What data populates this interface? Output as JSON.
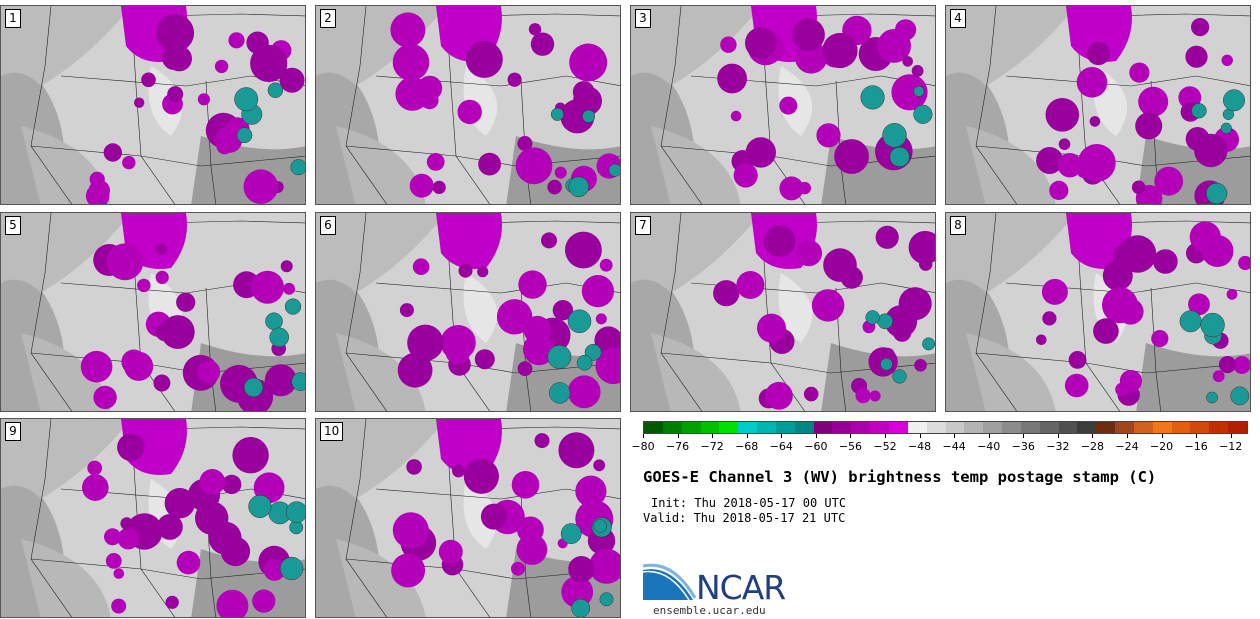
{
  "panels": [
    {
      "label": "1"
    },
    {
      "label": "2"
    },
    {
      "label": "3"
    },
    {
      "label": "4"
    },
    {
      "label": "5"
    },
    {
      "label": "6"
    },
    {
      "label": "7"
    },
    {
      "label": "8"
    },
    {
      "label": "9"
    },
    {
      "label": "10"
    }
  ],
  "colorbar": {
    "ticks": [
      "−80",
      "−76",
      "−72",
      "−68",
      "−64",
      "−60",
      "−56",
      "−52",
      "−48",
      "−44",
      "−40",
      "−36",
      "−32",
      "−28",
      "−24",
      "−20",
      "−16",
      "−12"
    ],
    "min": -80,
    "max": -10,
    "colors": [
      "#005a00",
      "#008000",
      "#00a000",
      "#00c000",
      "#00e000",
      "#00cccc",
      "#00b4b4",
      "#009c9c",
      "#008484",
      "#800080",
      "#960096",
      "#ac00ac",
      "#c200c2",
      "#d800d8",
      "#f0f0f0",
      "#dcdcdc",
      "#c8c8c8",
      "#b4b4b4",
      "#a0a0a0",
      "#8c8c8c",
      "#787878",
      "#646464",
      "#505050",
      "#3c3c3c",
      "#6e2e0e",
      "#a0461e",
      "#d2601e",
      "#f07818",
      "#e06010",
      "#d04a0a",
      "#c03000",
      "#b02000"
    ]
  },
  "title": "GOES-E Channel 3 (WV) brightness temp postage stamp (C)",
  "init": "Init: Thu 2018-05-17 00 UTC",
  "valid": "Valid: Thu 2018-05-17 21 UTC",
  "logo": {
    "name": "ncar-logo",
    "text": "NCAR"
  },
  "site": "ensemble.ucar.edu"
}
